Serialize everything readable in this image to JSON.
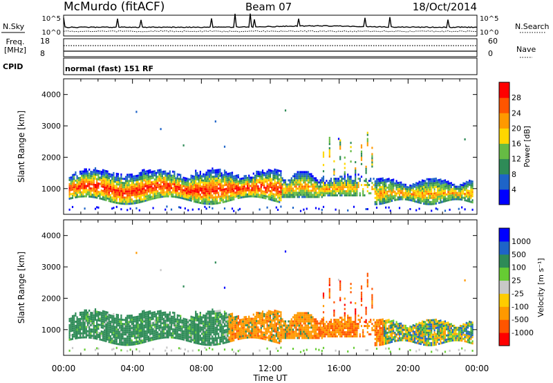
{
  "header": {
    "station": "McMurdo (fitACF)",
    "beam": "Beam 07",
    "date": "18/Oct/2014"
  },
  "top_panels": {
    "nsky_label": "N.Sky",
    "nsky_ticks": [
      "10^5",
      "10^0"
    ],
    "nsearch_label": "N.Search",
    "nsearch_ticks": [
      "10^5",
      "10^0"
    ],
    "freq_label_line1": "Freq.",
    "freq_label_line2": "[MHz]",
    "freq_ticks": [
      "18",
      "8"
    ],
    "nave_label": "Nave",
    "nave_ticks": [
      "60",
      "0"
    ],
    "cpid_label": "CPID",
    "cpid_text": "normal (fast) 151 RF"
  },
  "colors": {
    "power_scale": [
      "#0000ff",
      "#1e64c8",
      "#2e8b57",
      "#66bb44",
      "#ffd700",
      "#ff9900",
      "#ff5500",
      "#ff0000"
    ],
    "velocity_scale": [
      "#ff0000",
      "#ff5500",
      "#ff9900",
      "#ffcc00",
      "#c8c8c8",
      "#66cc33",
      "#2e8b57",
      "#1e64c8",
      "#0000ff"
    ]
  },
  "chart_data": [
    {
      "type": "heatmap",
      "title": "Power",
      "xlabel": "",
      "ylabel": "Slant Range [km]",
      "x_ticks": [
        "00:00",
        "04:00",
        "08:00",
        "12:00",
        "16:00",
        "20:00",
        "00:00"
      ],
      "xlim_hours": [
        0,
        24
      ],
      "y_ticks": [
        1000,
        2000,
        3000,
        4000
      ],
      "ylim": [
        180,
        4500
      ],
      "colorbar": {
        "label": "Power [dB]",
        "ticks": [
          4,
          8,
          12,
          16,
          20,
          24,
          28
        ],
        "range": [
          0,
          32
        ]
      },
      "summary": [
        {
          "hours": [
            0.3,
            12.6
          ],
          "range_km": [
            600,
            1500
          ],
          "description": "strong echoes, peaks above 28 dB near 800-1300 km"
        },
        {
          "hours": [
            12.6,
            16.3
          ],
          "range_km": [
            700,
            1600
          ],
          "description": "moderate echoes, 8-20 dB"
        },
        {
          "hours": [
            15.0,
            18.0
          ],
          "range_km": [
            1000,
            3300
          ],
          "description": "slanted bands, 8-24 dB"
        },
        {
          "hours": [
            18.0,
            23.5
          ],
          "range_km": [
            500,
            1400
          ],
          "description": "patchy echoes, 4-24 dB"
        }
      ]
    },
    {
      "type": "heatmap",
      "title": "Velocity",
      "xlabel": "Time UT",
      "ylabel": "Slant Range [km]",
      "x_ticks": [
        "00:00",
        "04:00",
        "08:00",
        "12:00",
        "16:00",
        "20:00",
        "00:00"
      ],
      "xlim_hours": [
        0,
        24
      ],
      "y_ticks": [
        1000,
        2000,
        3000,
        4000
      ],
      "ylim": [
        180,
        4500
      ],
      "colorbar": {
        "label": "Velocity [m s⁻¹]",
        "ticks": [
          -1000,
          -500,
          -100,
          -25,
          25,
          100,
          500,
          1000
        ]
      },
      "summary": [
        {
          "hours": [
            0.3,
            9.5
          ],
          "range_km": [
            600,
            1500
          ],
          "description": "mostly +100 to +500 m/s (green)"
        },
        {
          "hours": [
            9.5,
            14.5
          ],
          "range_km": [
            600,
            1500
          ],
          "description": "mostly -100 to -500 m/s (orange)"
        },
        {
          "hours": [
            14.5,
            18.5
          ],
          "range_km": [
            800,
            3300
          ],
          "description": "-500 to -1000 m/s (orange/red)"
        },
        {
          "hours": [
            18.5,
            23.5
          ],
          "range_km": [
            500,
            1400
          ],
          "description": "mixed, -100 to +500 m/s"
        }
      ]
    }
  ]
}
